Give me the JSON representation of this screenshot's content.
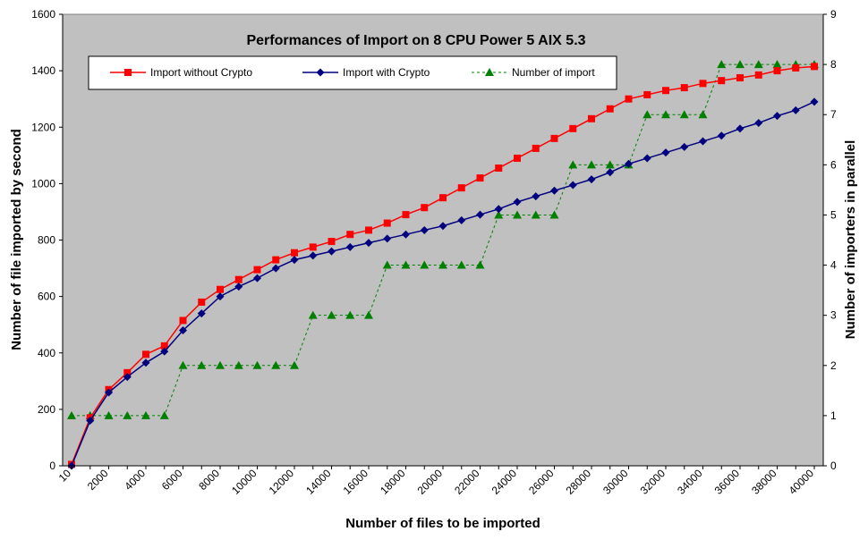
{
  "chart_data": {
    "type": "line",
    "title": "Performances of Import on 8 CPU Power 5 AIX 5.3",
    "xlabel": "Number of files to be imported",
    "ylabel": "Number of file imported by second",
    "y2label": "Number of importers in parallel",
    "ylim": [
      0,
      1600
    ],
    "y2lim": [
      0,
      9
    ],
    "yticks": [
      0,
      200,
      400,
      600,
      800,
      1000,
      1200,
      1400,
      1600
    ],
    "y2ticks": [
      0,
      1,
      2,
      3,
      4,
      5,
      6,
      7,
      8,
      9
    ],
    "xtick_labels": [
      "10",
      "2000",
      "4000",
      "6000",
      "8000",
      "10000",
      "12000",
      "14000",
      "16000",
      "18000",
      "20000",
      "22000",
      "24000",
      "26000",
      "28000",
      "30000",
      "32000",
      "34000",
      "36000",
      "38000",
      "40000"
    ],
    "grid": false,
    "background": "#c0c0c0",
    "legend_position": "top",
    "series": [
      {
        "name": "Import without Crypto",
        "color": "#ff0000",
        "marker": "square",
        "axis": "left",
        "values": [
          5,
          170,
          270,
          330,
          395,
          425,
          515,
          580,
          625,
          660,
          695,
          730,
          755,
          775,
          795,
          820,
          835,
          860,
          890,
          915,
          950,
          985,
          1020,
          1055,
          1090,
          1125,
          1160,
          1195,
          1230,
          1265,
          1300,
          1315,
          1330,
          1340,
          1355,
          1365,
          1375,
          1385,
          1400,
          1410,
          1415
        ]
      },
      {
        "name": "Import with Crypto",
        "color": "#00007f",
        "marker": "diamond",
        "axis": "left",
        "values": [
          0,
          160,
          260,
          315,
          365,
          405,
          480,
          540,
          600,
          635,
          665,
          700,
          730,
          745,
          760,
          775,
          790,
          805,
          820,
          835,
          850,
          870,
          890,
          910,
          935,
          955,
          975,
          995,
          1015,
          1040,
          1070,
          1090,
          1110,
          1130,
          1150,
          1170,
          1195,
          1215,
          1240,
          1260,
          1290
        ]
      },
      {
        "name": "Number of import",
        "color": "#007f00",
        "marker": "triangle",
        "axis": "right",
        "dashed": true,
        "values": [
          1,
          1,
          1,
          1,
          1,
          1,
          2,
          2,
          2,
          2,
          2,
          2,
          2,
          3,
          3,
          3,
          3,
          4,
          4,
          4,
          4,
          4,
          4,
          5,
          5,
          5,
          5,
          6,
          6,
          6,
          6,
          7,
          7,
          7,
          7,
          8,
          8,
          8,
          8,
          8,
          8
        ]
      }
    ]
  }
}
